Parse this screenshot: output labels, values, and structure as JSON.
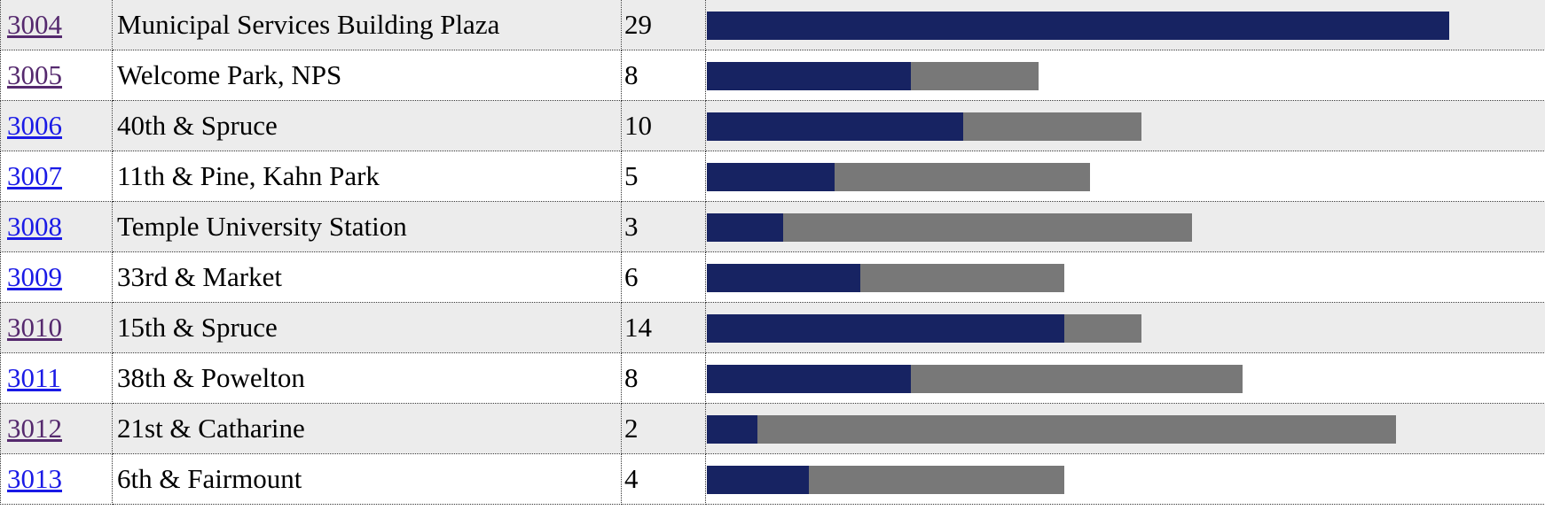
{
  "colors": {
    "available_bar": "#172362",
    "capacity_bar": "#787878",
    "row_stripe": "#ececec",
    "link_unvisited": "#1a1ae6",
    "link_visited": "#55296e"
  },
  "stations": [
    {
      "id": "3004",
      "name": "Municipal Services Building Plaza",
      "count": "29",
      "capacity_fraction": 0.89,
      "available_fraction": 0.89,
      "link_state": "visited"
    },
    {
      "id": "3005",
      "name": "Welcome Park, NPS",
      "count": "8",
      "capacity_fraction": 0.398,
      "available_fraction": 0.245,
      "link_state": "visited"
    },
    {
      "id": "3006",
      "name": "40th & Spruce",
      "count": "10",
      "capacity_fraction": 0.521,
      "available_fraction": 0.307,
      "link_state": "unvisited"
    },
    {
      "id": "3007",
      "name": "11th & Pine, Kahn Park",
      "count": "5",
      "capacity_fraction": 0.46,
      "available_fraction": 0.153,
      "link_state": "unvisited"
    },
    {
      "id": "3008",
      "name": "Temple University Station",
      "count": "3",
      "capacity_fraction": 0.582,
      "available_fraction": 0.092,
      "link_state": "unvisited"
    },
    {
      "id": "3009",
      "name": "33rd & Market",
      "count": "6",
      "capacity_fraction": 0.429,
      "available_fraction": 0.184,
      "link_state": "unvisited"
    },
    {
      "id": "3010",
      "name": "15th & Spruce",
      "count": "14",
      "capacity_fraction": 0.521,
      "available_fraction": 0.429,
      "link_state": "visited"
    },
    {
      "id": "3011",
      "name": "38th & Powelton",
      "count": "8",
      "capacity_fraction": 0.643,
      "available_fraction": 0.245,
      "link_state": "unvisited"
    },
    {
      "id": "3012",
      "name": "21st & Catharine",
      "count": "2",
      "capacity_fraction": 0.827,
      "available_fraction": 0.061,
      "link_state": "visited"
    },
    {
      "id": "3013",
      "name": "6th & Fairmount",
      "count": "4",
      "capacity_fraction": 0.429,
      "available_fraction": 0.122,
      "link_state": "unvisited"
    }
  ]
}
